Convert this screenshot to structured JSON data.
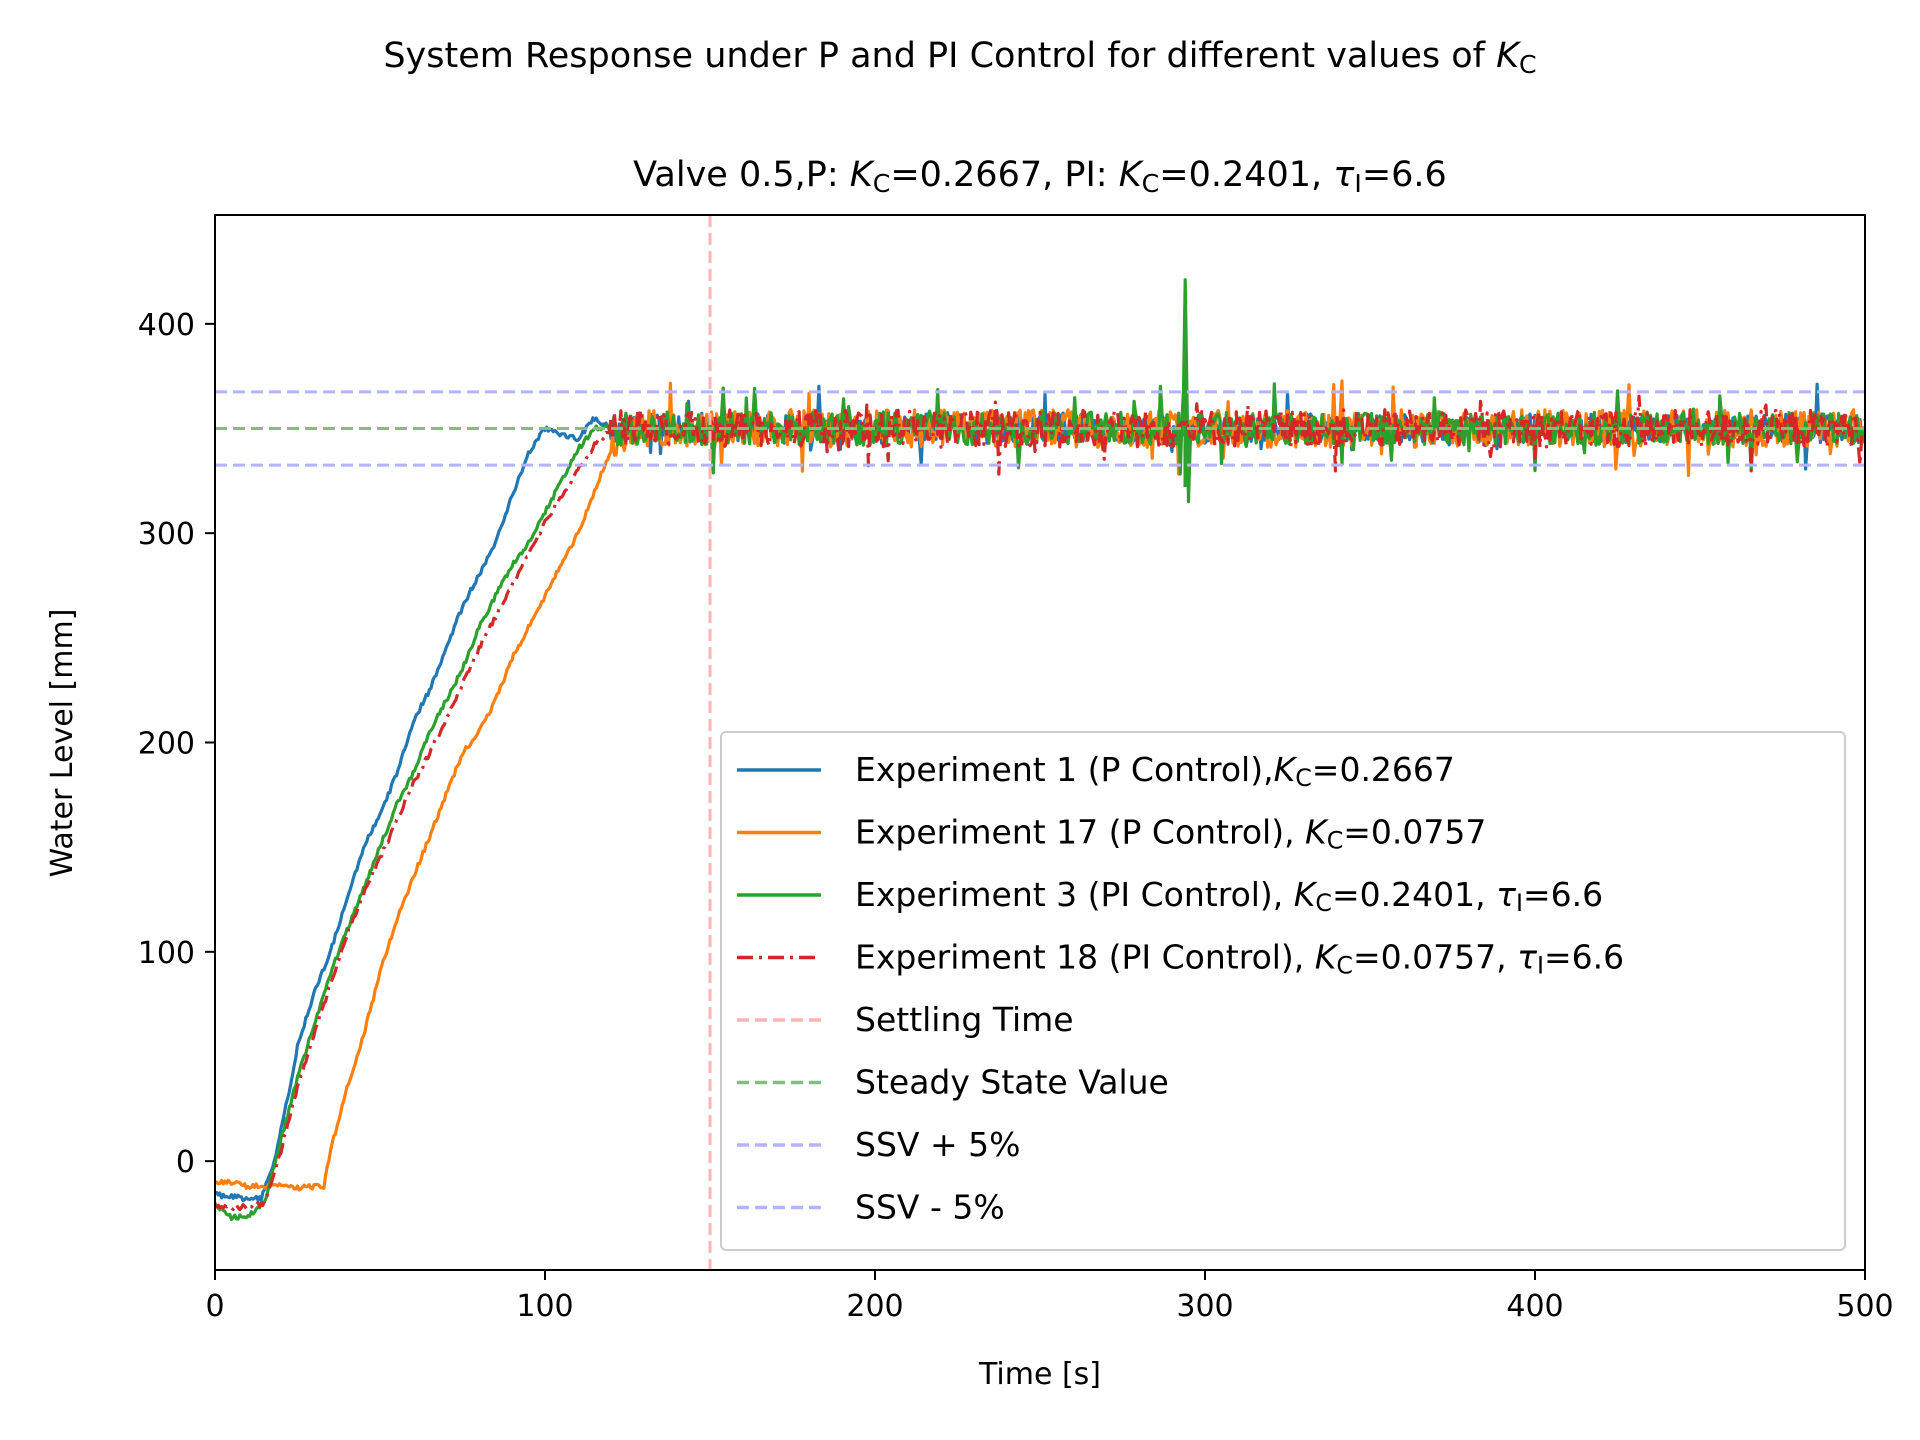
{
  "chart_data": {
    "type": "line",
    "suptitle": {
      "text": "System Response under P and PI Control for different values of ",
      "sym": "K",
      "sub": "C"
    },
    "title": [
      {
        "t": "Valve 0.5,P: "
      },
      {
        "t": "K",
        "i": true
      },
      {
        "t": "C",
        "s": true
      },
      {
        "t": "=0.2667, PI: "
      },
      {
        "t": "K",
        "i": true
      },
      {
        "t": "C",
        "s": true
      },
      {
        "t": "=0.2401, "
      },
      {
        "t": "τ",
        "i": true
      },
      {
        "t": "I",
        "s": true
      },
      {
        "t": "=6.6"
      }
    ],
    "xlabel": "Time [s]",
    "ylabel": "Water Level [mm]",
    "xlim": [
      0,
      500
    ],
    "ylim": [
      -52,
      452
    ],
    "xticks": [
      "0",
      "100",
      "200",
      "300",
      "400",
      "500"
    ],
    "yticks": [
      "0",
      "100",
      "200",
      "300",
      "400"
    ],
    "grid": false,
    "legend_position": "lower-right",
    "settling_time": 150,
    "steady_state_value": 350,
    "ssv_plus_5": 367.5,
    "ssv_minus_5": 332.5,
    "series": [
      {
        "name": [
          {
            "t": "Experiment 1 (P Control),"
          },
          {
            "t": "K",
            "i": true
          },
          {
            "t": "C",
            "s": true
          },
          {
            "t": "=0.2667"
          }
        ],
        "color": "#1f77b4",
        "style": "solid",
        "noise": 7,
        "x": [
          0,
          5,
          10,
          14,
          18,
          22,
          25,
          30,
          35,
          40,
          45,
          50,
          55,
          60,
          65,
          70,
          75,
          80,
          85,
          90,
          95,
          100,
          105,
          110,
          115,
          120,
          130,
          140,
          150,
          200,
          250,
          300,
          350,
          400,
          450,
          500
        ],
        "y": [
          -16,
          -17,
          -18,
          -18,
          0,
          30,
          55,
          80,
          100,
          125,
          150,
          165,
          185,
          210,
          225,
          245,
          265,
          280,
          295,
          318,
          338,
          350,
          347,
          345,
          355,
          350,
          350,
          349,
          350,
          350,
          350,
          350,
          350,
          350,
          350,
          350
        ]
      },
      {
        "name": [
          {
            "t": "Experiment 17 (P Control), "
          },
          {
            "t": "K",
            "i": true
          },
          {
            "t": "C",
            "s": true
          },
          {
            "t": "=0.0757"
          }
        ],
        "color": "#ff7f0e",
        "style": "solid",
        "noise": 9,
        "x": [
          0,
          5,
          10,
          15,
          20,
          25,
          30,
          33,
          35,
          40,
          45,
          50,
          55,
          60,
          65,
          70,
          75,
          80,
          85,
          90,
          95,
          100,
          105,
          110,
          115,
          120,
          125,
          130,
          150,
          200,
          250,
          300,
          350,
          400,
          450,
          500
        ],
        "y": [
          -10,
          -10,
          -12,
          -12,
          -12,
          -13,
          -12,
          -12,
          5,
          35,
          60,
          90,
          115,
          135,
          155,
          175,
          195,
          205,
          220,
          240,
          255,
          270,
          285,
          300,
          320,
          340,
          350,
          350,
          350,
          350,
          350,
          350,
          350,
          350,
          350,
          350
        ]
      },
      {
        "name": [
          {
            "t": "Experiment 3 (PI Control), "
          },
          {
            "t": "K",
            "i": true
          },
          {
            "t": "C",
            "s": true
          },
          {
            "t": "=0.2401, "
          },
          {
            "t": "τ",
            "i": true
          },
          {
            "t": "I",
            "s": true
          },
          {
            "t": "=6.6"
          }
        ],
        "color": "#2ca02c",
        "style": "solid",
        "noise": 8,
        "x": [
          0,
          5,
          10,
          15,
          20,
          25,
          30,
          35,
          40,
          45,
          50,
          55,
          60,
          65,
          70,
          75,
          80,
          85,
          90,
          95,
          100,
          105,
          110,
          115,
          120,
          130,
          150,
          200,
          250,
          293,
          294,
          295,
          296,
          350,
          400,
          450,
          500
        ],
        "y": [
          -20,
          -27,
          -26,
          -20,
          10,
          40,
          65,
          90,
          110,
          130,
          150,
          170,
          185,
          205,
          220,
          235,
          255,
          270,
          285,
          295,
          310,
          325,
          340,
          350,
          350,
          350,
          350,
          350,
          350,
          350,
          406,
          322,
          350,
          350,
          350,
          350,
          350
        ]
      },
      {
        "name": [
          {
            "t": "Experiment 18 (PI Control), "
          },
          {
            "t": "K",
            "i": true
          },
          {
            "t": "C",
            "s": true
          },
          {
            "t": "=0.0757, "
          },
          {
            "t": "τ",
            "i": true
          },
          {
            "t": "I",
            "s": true
          },
          {
            "t": "=6.6"
          }
        ],
        "color": "#d62728",
        "style": "dashdot",
        "noise": 9,
        "x": [
          0,
          5,
          10,
          15,
          20,
          25,
          30,
          35,
          40,
          45,
          50,
          55,
          60,
          65,
          70,
          75,
          80,
          85,
          90,
          95,
          100,
          105,
          110,
          115,
          120,
          125,
          130,
          150,
          200,
          250,
          300,
          350,
          400,
          450,
          500
        ],
        "y": [
          -22,
          -22,
          -22,
          -20,
          5,
          35,
          60,
          85,
          108,
          128,
          145,
          162,
          180,
          195,
          210,
          228,
          245,
          260,
          275,
          290,
          305,
          318,
          330,
          342,
          350,
          350,
          350,
          350,
          350,
          350,
          350,
          350,
          350,
          350,
          350
        ]
      }
    ],
    "reference_lines": [
      {
        "name": "Settling Time",
        "color": "#ffb3b3"
      },
      {
        "name": "Steady State Value",
        "color": "#80bf80"
      },
      {
        "name": "SSV + 5%",
        "color": "#b3b3ff"
      },
      {
        "name": "SSV - 5%",
        "color": "#b3b3ff"
      }
    ]
  }
}
